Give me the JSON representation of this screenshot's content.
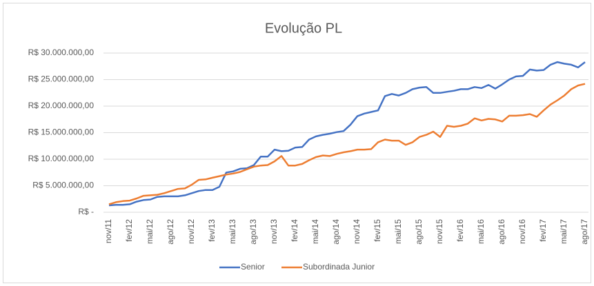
{
  "chart_data": {
    "type": "line",
    "title": "Evolução PL",
    "categories": [
      "nov/11",
      null,
      null,
      "fev/12",
      null,
      null,
      "mai/12",
      null,
      null,
      "ago/12",
      null,
      null,
      "nov/12",
      null,
      null,
      "fev/13",
      null,
      null,
      "mai/13",
      null,
      null,
      "ago/13",
      null,
      null,
      "nov/13",
      null,
      null,
      "fev/14",
      null,
      null,
      "mai/14",
      null,
      null,
      "ago/14",
      null,
      null,
      "nov/14",
      null,
      null,
      "fev/15",
      null,
      null,
      "mai/15",
      null,
      null,
      "ago/15",
      null,
      null,
      "nov/15",
      null,
      null,
      "fev/16",
      null,
      null,
      "mai/16",
      null,
      null,
      "ago/16",
      null,
      null,
      "nov/16",
      null,
      null,
      "fev/17",
      null,
      null,
      "mai/17",
      null,
      null,
      "ago/17"
    ],
    "series": [
      {
        "name": "Senior",
        "color": "#4472c4",
        "values": [
          1300000,
          1400000,
          1400000,
          1500000,
          2000000,
          2300000,
          2400000,
          2900000,
          3000000,
          3000000,
          3000000,
          3200000,
          3600000,
          4000000,
          4200000,
          4200000,
          4800000,
          7500000,
          7700000,
          8200000,
          8300000,
          8900000,
          10500000,
          10500000,
          11800000,
          11500000,
          11600000,
          12200000,
          12300000,
          13700000,
          14300000,
          14600000,
          14800000,
          15100000,
          15300000,
          16500000,
          18100000,
          18600000,
          18900000,
          19200000,
          21900000,
          22300000,
          22000000,
          22500000,
          23200000,
          23500000,
          23600000,
          22500000,
          22500000,
          22700000,
          22900000,
          23200000,
          23200000,
          23600000,
          23400000,
          24000000,
          23300000,
          24100000,
          25000000,
          25600000,
          25700000,
          26900000,
          26700000,
          26800000,
          27800000,
          28300000,
          28000000,
          27800000,
          27300000,
          28300000
        ]
      },
      {
        "name": "Subordinada Junior",
        "color": "#ed7d31",
        "values": [
          1500000,
          1900000,
          2100000,
          2200000,
          2600000,
          3100000,
          3200000,
          3300000,
          3600000,
          4000000,
          4400000,
          4500000,
          5200000,
          6100000,
          6200000,
          6500000,
          6800000,
          7100000,
          7300000,
          7600000,
          8100000,
          8600000,
          8800000,
          8900000,
          9600000,
          10600000,
          8800000,
          8800000,
          9100000,
          9800000,
          10400000,
          10700000,
          10600000,
          11000000,
          11300000,
          11500000,
          11800000,
          11800000,
          11900000,
          13200000,
          13700000,
          13500000,
          13500000,
          12700000,
          13200000,
          14200000,
          14600000,
          15200000,
          14200000,
          16300000,
          16100000,
          16300000,
          16700000,
          17700000,
          17300000,
          17600000,
          17500000,
          17100000,
          18200000,
          18200000,
          18300000,
          18500000,
          18000000,
          19200000,
          20300000,
          21100000,
          22000000,
          23200000,
          23900000,
          24200000
        ]
      }
    ],
    "ylim": [
      0,
      30000000
    ],
    "yticks": [
      {
        "value": 0,
        "label": "R$ -"
      },
      {
        "value": 5000000,
        "label": "R$ 5.000.000,00"
      },
      {
        "value": 10000000,
        "label": "R$ 10.000.000,00"
      },
      {
        "value": 15000000,
        "label": "R$ 15.000.000,00"
      },
      {
        "value": 20000000,
        "label": "R$ 20.000.000,00"
      },
      {
        "value": 25000000,
        "label": "R$ 25.000.000,00"
      },
      {
        "value": 30000000,
        "label": "R$ 30.000.000,00"
      }
    ],
    "grid": true,
    "legend": "bottom"
  }
}
